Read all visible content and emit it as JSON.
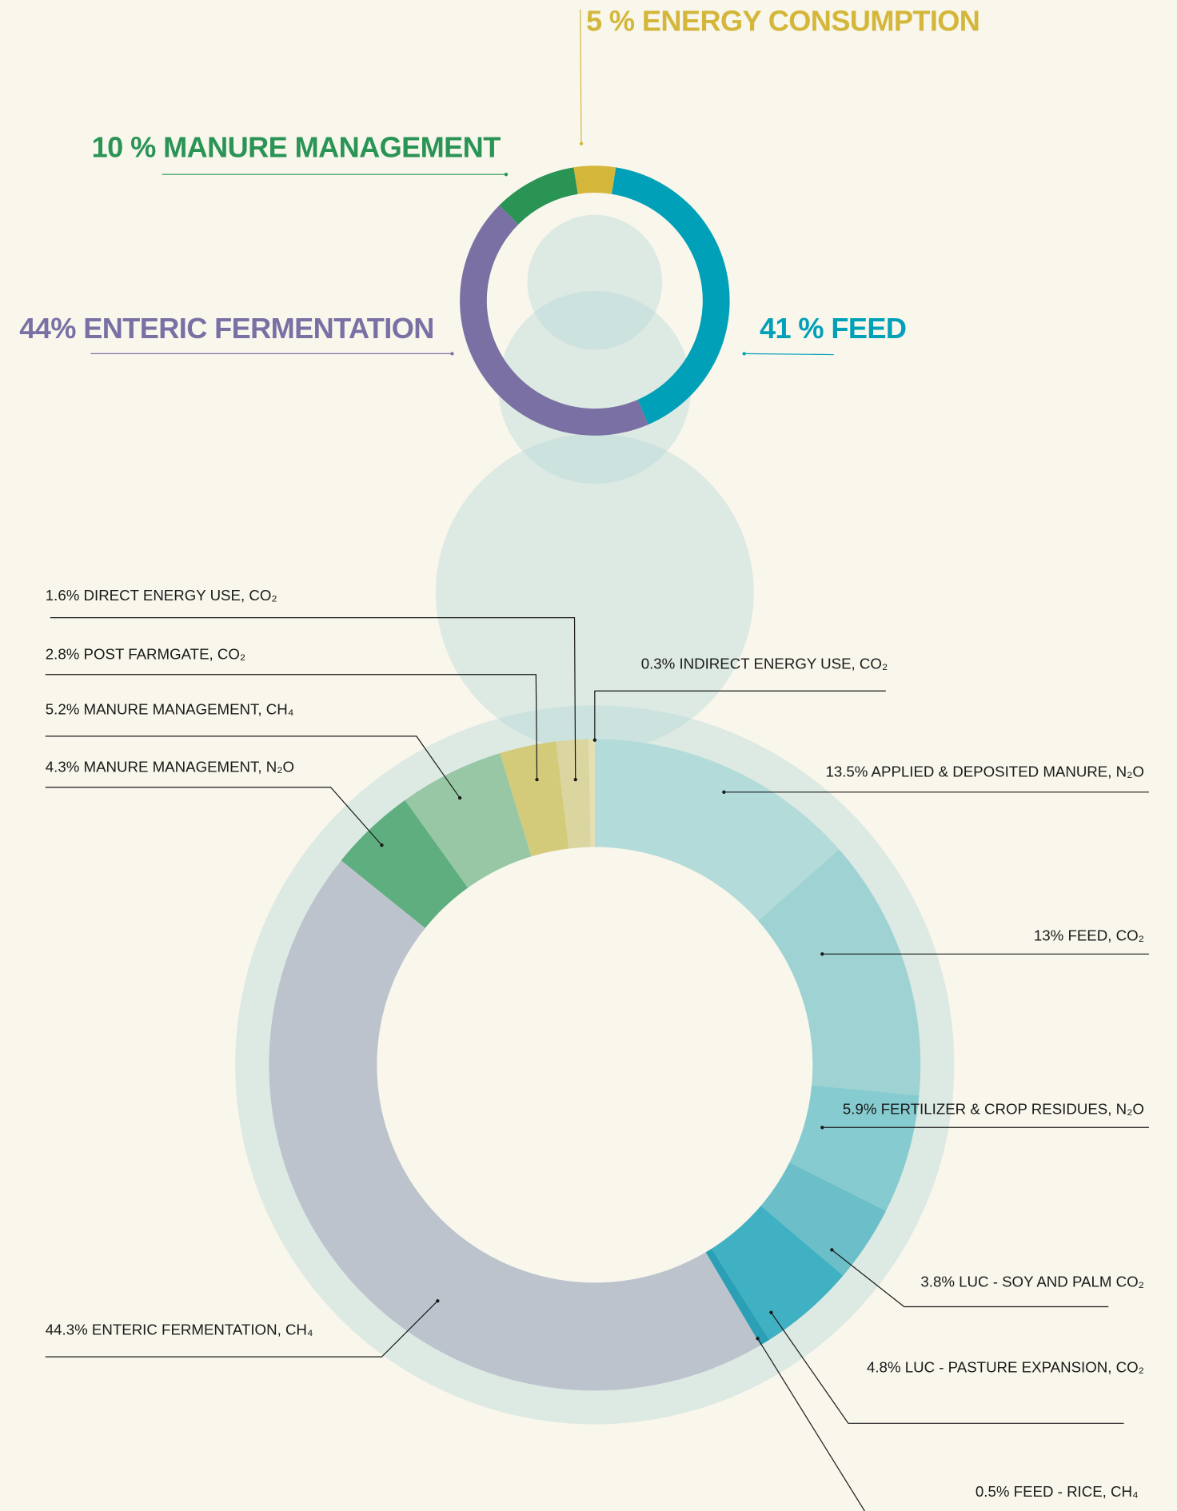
{
  "chart_data": [
    {
      "type": "donut",
      "labels": [
        "41 % FEED",
        "44% ENTERIC FERMENTATION",
        "10 % MANURE MANAGEMENT",
        "5 % ENERGY CONSUMPTION"
      ],
      "values": [
        41,
        44,
        10,
        5
      ],
      "colors": [
        "#00a0b8",
        "#7a70a4",
        "#2a9455",
        "#d4b73a"
      ]
    },
    {
      "type": "donut",
      "labels": [
        "13.5% APPLIED & DEPOSITED MANURE, N₂O",
        "13% FEED, CO₂",
        "5.9% FERTILIZER & CROP RESIDUES, N₂O",
        "3.8% LUC - SOY AND PALM CO₂",
        "4.8% LUC - PASTURE EXPANSION, CO₂",
        "0.5% FEED - RICE, CH₄",
        "44.3% ENTERIC FERMENTATION, CH₄",
        "4.3% MANURE MANAGEMENT, N₂O",
        "5.2% MANURE MANAGEMENT, CH₄",
        "2.8% POST FARMGATE, CO₂",
        "1.6% DIRECT ENERGY USE, CO₂",
        "0.3% INDIRECT ENERGY USE, CO₂"
      ],
      "values": [
        13.5,
        13,
        5.9,
        3.8,
        4.8,
        0.5,
        44.3,
        4.3,
        5.2,
        2.8,
        1.6,
        0.3
      ],
      "colors": [
        "#b3dbd9",
        "#9fd3d3",
        "#86cbd0",
        "#6cbfc9",
        "#40b1c2",
        "#2a9fb5",
        "#bcc3cd",
        "#5fae80",
        "#97c7a5",
        "#d4cb7a",
        "#dbd6a0",
        "#e6dfb2"
      ]
    }
  ]
}
